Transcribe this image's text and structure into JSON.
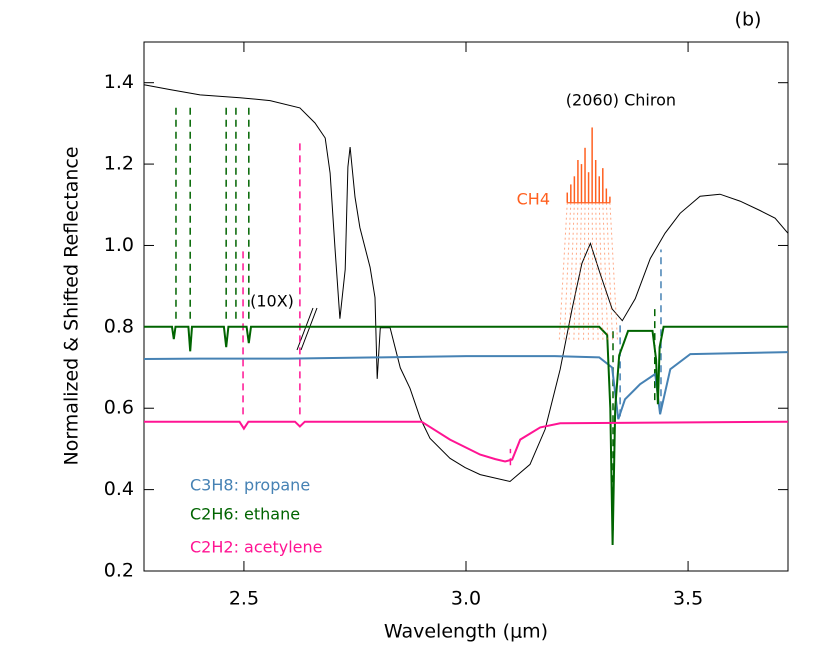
{
  "chart_data": {
    "type": "line",
    "panel_label": "(b)",
    "xlabel": "Wavelength (μm)",
    "ylabel": "Normalized & Shifted Reflectance",
    "annotation": "(10X)",
    "xlim": [
      2.275,
      3.725
    ],
    "ylim": [
      0.2,
      1.5
    ],
    "xticks": [
      2.5,
      {
        "value": 3,
        "label": "3.0"
      },
      3.5
    ],
    "yticks": [
      0.2,
      0.4,
      0.6,
      0.8,
      {
        "value": 1,
        "label": "1.0"
      },
      1.2,
      1.4
    ],
    "series": [
      {
        "name": "(2060) Chiron",
        "color": "#000000",
        "x": [
          2.275,
          2.334,
          2.401,
          2.491,
          2.559,
          2.626,
          2.66,
          2.683,
          2.694,
          2.705,
          2.716,
          2.728,
          2.734,
          2.739,
          2.75,
          2.761,
          2.784,
          2.795,
          2.8,
          2.807,
          2.829,
          2.852,
          2.874,
          2.897,
          2.919,
          2.964,
          2.998,
          3.032,
          3.099,
          3.144,
          3.178,
          3.212,
          3.239,
          3.261,
          3.28,
          3.302,
          3.329,
          3.352,
          3.381,
          3.415,
          3.448,
          3.482,
          3.527,
          3.572,
          3.617,
          3.662,
          3.696,
          3.725
        ],
        "values": [
          1.395,
          1.383,
          1.37,
          1.363,
          1.356,
          1.338,
          1.301,
          1.264,
          1.178,
          0.993,
          0.82,
          0.941,
          1.193,
          1.242,
          1.119,
          1.044,
          0.946,
          0.872,
          0.672,
          0.798,
          0.798,
          0.699,
          0.649,
          0.575,
          0.526,
          0.477,
          0.454,
          0.437,
          0.42,
          0.462,
          0.548,
          0.696,
          0.844,
          0.956,
          1.005,
          0.931,
          0.844,
          0.815,
          0.869,
          0.968,
          1.03,
          1.079,
          1.121,
          1.126,
          1.109,
          1.086,
          1.067,
          1.03
        ]
      },
      {
        "name": "C3H8: propane",
        "color": "#4682b4",
        "x": [
          2.275,
          2.4,
          2.6,
          2.8,
          3.0,
          3.2,
          3.3,
          3.329,
          3.343,
          3.358,
          3.392,
          3.426,
          3.437,
          3.46,
          3.505,
          3.6,
          3.725
        ],
        "values": [
          0.721,
          0.722,
          0.722,
          0.725,
          0.728,
          0.728,
          0.725,
          0.7,
          0.573,
          0.622,
          0.659,
          0.684,
          0.585,
          0.696,
          0.733,
          0.735,
          0.738
        ]
      },
      {
        "name": "C2H6: ethane",
        "color": "#006400",
        "x": [
          2.275,
          2.338,
          2.342,
          2.346,
          2.375,
          2.379,
          2.383,
          2.455,
          2.46,
          2.465,
          2.506,
          2.511,
          2.516,
          3.3,
          3.318,
          3.325,
          3.33,
          3.336,
          3.345,
          3.355,
          3.365,
          3.42,
          3.428,
          3.432,
          3.436,
          3.445,
          3.725
        ],
        "values": [
          0.8,
          0.8,
          0.77,
          0.8,
          0.8,
          0.74,
          0.8,
          0.8,
          0.75,
          0.8,
          0.8,
          0.76,
          0.8,
          0.8,
          0.78,
          0.6,
          0.264,
          0.6,
          0.73,
          0.76,
          0.79,
          0.79,
          0.72,
          0.61,
          0.75,
          0.8,
          0.8
        ]
      },
      {
        "name": "C2H2: acetylene",
        "color": "#ff1493",
        "x": [
          2.275,
          2.49,
          2.5,
          2.51,
          2.615,
          2.626,
          2.637,
          2.9,
          2.964,
          3.032,
          3.066,
          3.088,
          3.104,
          3.122,
          3.167,
          3.212,
          3.725
        ],
        "values": [
          0.567,
          0.567,
          0.55,
          0.567,
          0.567,
          0.555,
          0.567,
          0.567,
          0.523,
          0.486,
          0.475,
          0.469,
          0.474,
          0.523,
          0.553,
          0.563,
          0.567
        ]
      },
      {
        "name": "CH4",
        "color": "#ff6020",
        "baseline": 1.105,
        "x": [
          3.228,
          3.236,
          3.244,
          3.252,
          3.26,
          3.268,
          3.276,
          3.284,
          3.292,
          3.3,
          3.308,
          3.316,
          3.324
        ],
        "values": [
          1.13,
          1.15,
          1.17,
          1.21,
          1.2,
          1.24,
          1.18,
          1.29,
          1.21,
          1.17,
          1.19,
          1.14,
          1.12
        ]
      }
    ],
    "band_markers": [
      {
        "x": 2.347,
        "range": [
          0.82,
          1.34
        ],
        "color": "#006400"
      },
      {
        "x": 2.379,
        "range": [
          0.82,
          1.34
        ],
        "color": "#006400"
      },
      {
        "x": 2.46,
        "range": [
          0.82,
          1.34
        ],
        "color": "#006400"
      },
      {
        "x": 2.482,
        "range": [
          0.82,
          1.34
        ],
        "color": "#006400"
      },
      {
        "x": 2.511,
        "range": [
          0.82,
          1.34
        ],
        "color": "#006400"
      },
      {
        "x": 2.498,
        "range": [
          0.585,
          0.99
        ],
        "color": "#ff1493"
      },
      {
        "x": 2.626,
        "range": [
          0.585,
          1.26
        ],
        "color": "#ff1493"
      },
      {
        "x": 3.1,
        "range": [
          0.46,
          0.5
        ],
        "color": "#ff1493"
      },
      {
        "x": 3.331,
        "range": [
          0.3,
          0.8
        ],
        "color": "#006400"
      },
      {
        "x": 3.347,
        "range": [
          0.58,
          0.81
        ],
        "color": "#4682b4"
      },
      {
        "x": 3.425,
        "range": [
          0.62,
          0.85
        ],
        "color": "#006400"
      },
      {
        "x": 3.439,
        "range": [
          0.6,
          0.99
        ],
        "color": "#4682b4"
      }
    ]
  }
}
